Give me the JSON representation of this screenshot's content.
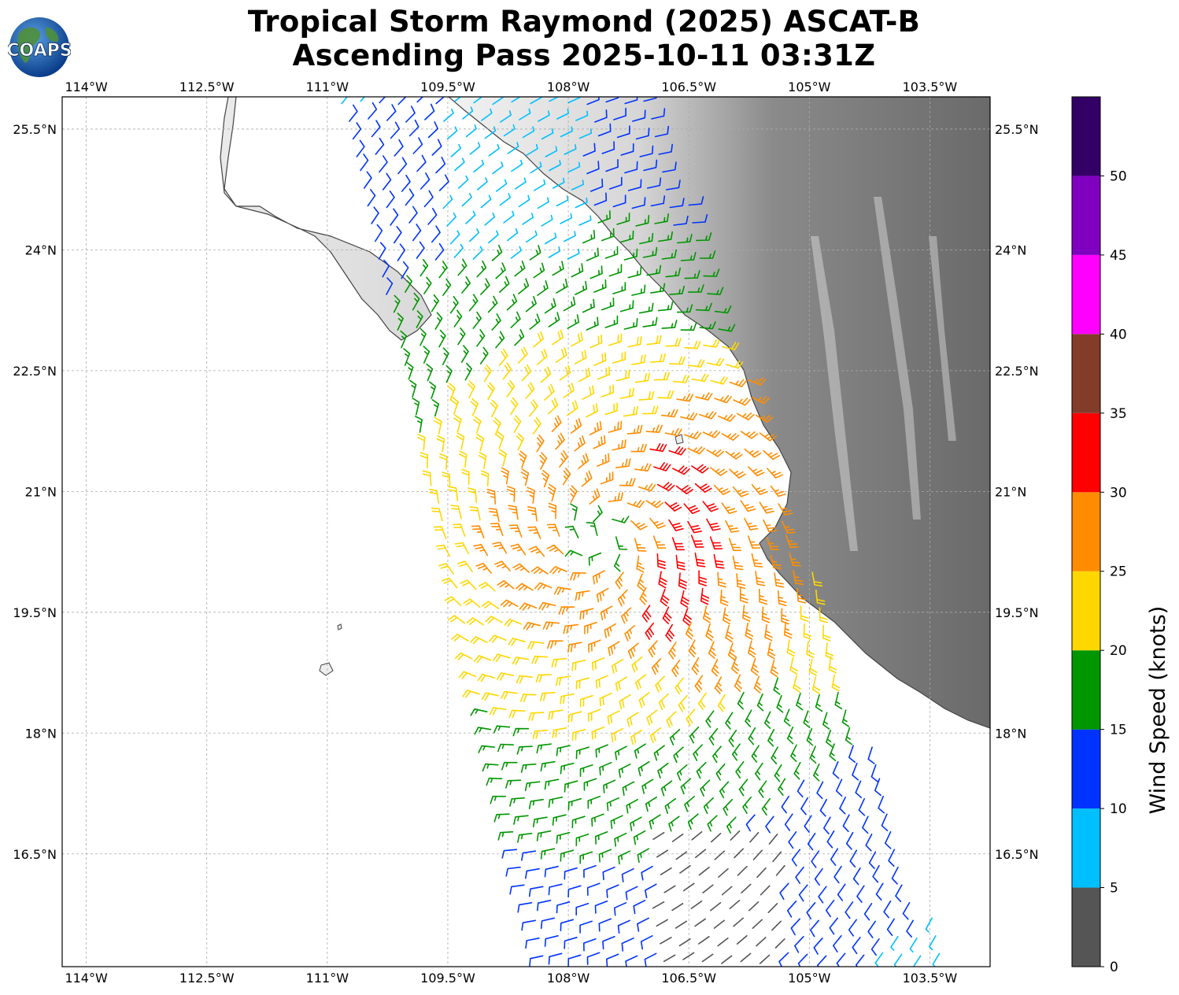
{
  "title": {
    "line1": "Tropical Storm Raymond (2025) ASCAT-B",
    "line2": "Ascending Pass 2025-10-11 03:31Z"
  },
  "logo": {
    "text": "COAPS",
    "icon": "globe-logo"
  },
  "map": {
    "projection": "PlateCarree",
    "lon_range": [
      -114.3,
      -102.75
    ],
    "lat_range": [
      15.1,
      25.9
    ],
    "gridlines": true,
    "lon_ticks": [
      {
        "value": -114.0,
        "label": "114°W"
      },
      {
        "value": -112.5,
        "label": "112.5°W"
      },
      {
        "value": -111.0,
        "label": "111°W"
      },
      {
        "value": -109.5,
        "label": "109.5°W"
      },
      {
        "value": -108.0,
        "label": "108°W"
      },
      {
        "value": -106.5,
        "label": "106.5°W"
      },
      {
        "value": -105.0,
        "label": "105°W"
      },
      {
        "value": -103.5,
        "label": "103.5°W"
      }
    ],
    "lat_ticks": [
      {
        "value": 25.5,
        "label": "25.5°N"
      },
      {
        "value": 24.0,
        "label": "24°N"
      },
      {
        "value": 22.5,
        "label": "22.5°N"
      },
      {
        "value": 21.0,
        "label": "21°N"
      },
      {
        "value": 19.5,
        "label": "19.5°N"
      },
      {
        "value": 18.0,
        "label": "18°N"
      },
      {
        "value": 16.5,
        "label": "16.5°N"
      }
    ],
    "storm_center": {
      "lon": -107.6,
      "lat": 20.45
    },
    "land_color": "#7a7a7a",
    "ocean_color": "#ffffff"
  },
  "colorbar": {
    "label": "Wind Speed (knots)",
    "ticks": [
      0,
      5,
      10,
      15,
      20,
      25,
      30,
      35,
      40,
      45,
      50
    ],
    "bins": [
      {
        "min": 0,
        "max": 5,
        "color": "#555555"
      },
      {
        "min": 5,
        "max": 10,
        "color": "#00bfff"
      },
      {
        "min": 10,
        "max": 15,
        "color": "#0033ff"
      },
      {
        "min": 15,
        "max": 20,
        "color": "#009600"
      },
      {
        "min": 20,
        "max": 25,
        "color": "#ffd700"
      },
      {
        "min": 25,
        "max": 30,
        "color": "#ff8c00"
      },
      {
        "min": 30,
        "max": 35,
        "color": "#ff0000"
      },
      {
        "min": 35,
        "max": 40,
        "color": "#833c2a"
      },
      {
        "min": 40,
        "max": 45,
        "color": "#ff00ff"
      },
      {
        "min": 45,
        "max": 50,
        "color": "#8000c0"
      },
      {
        "min": 50,
        "max": 55,
        "color": "#330066"
      }
    ]
  }
}
